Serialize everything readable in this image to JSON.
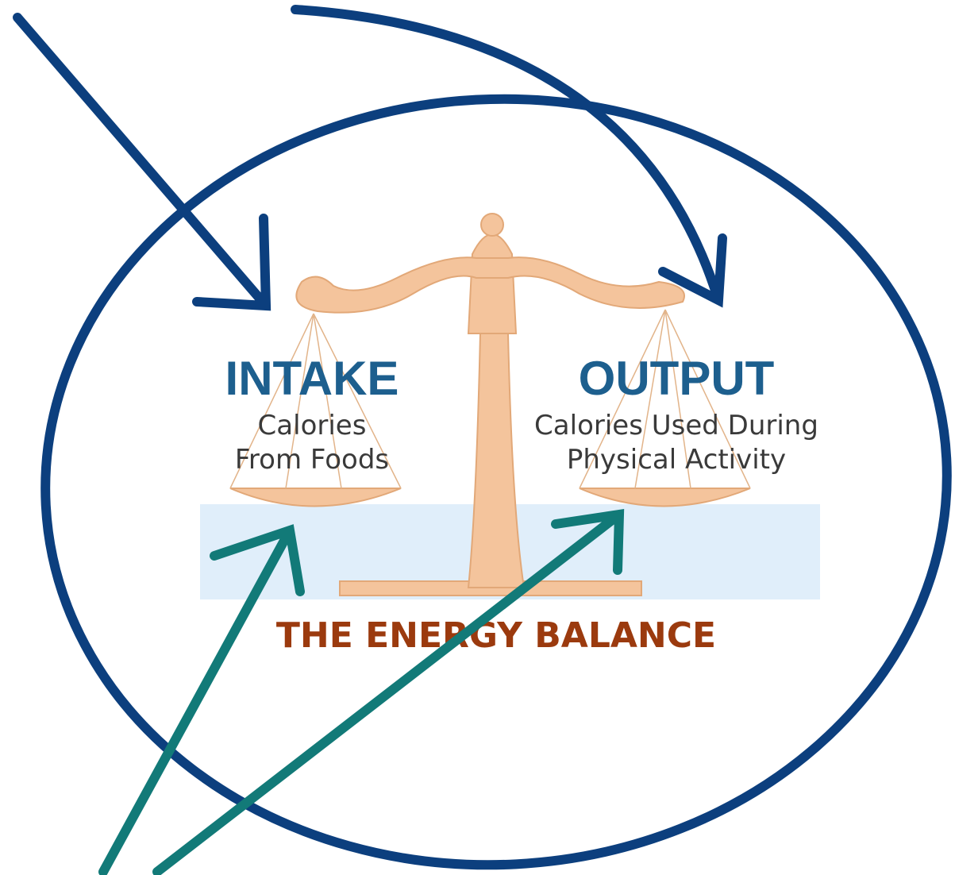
{
  "intake": {
    "title": "INTAKE",
    "lines": [
      "Calories",
      "From Foods"
    ]
  },
  "output": {
    "title": "OUTPUT",
    "lines": [
      "Calories Used During",
      "Physical Activity"
    ]
  },
  "caption": "THE ENERGY BALANCE"
}
